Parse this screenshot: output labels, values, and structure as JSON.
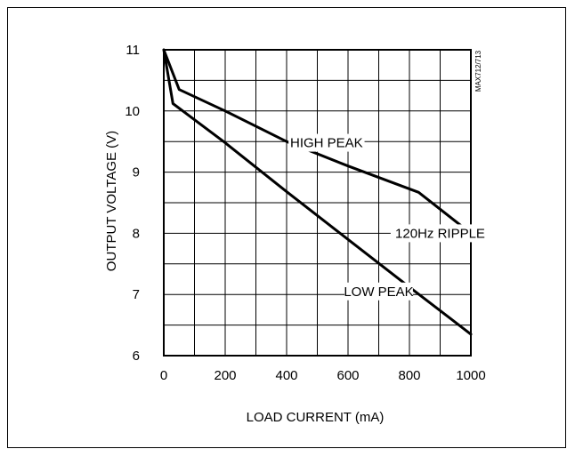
{
  "chart_data": {
    "type": "line",
    "title": "",
    "xlabel": "LOAD CURRENT (mA)",
    "ylabel": "OUTPUT VOLTAGE (V)",
    "xlim": [
      0,
      1000
    ],
    "ylim": [
      6,
      11
    ],
    "xticks": [
      0,
      200,
      400,
      600,
      800,
      1000
    ],
    "yticks": [
      6,
      7,
      8,
      9,
      10,
      11
    ],
    "grid": true,
    "side_label": "MAX712/713",
    "series": [
      {
        "name": "HIGH PEAK",
        "points": [
          [
            0,
            11.0
          ],
          [
            50,
            10.35
          ],
          [
            200,
            10.0
          ],
          [
            400,
            9.5
          ],
          [
            600,
            9.1
          ],
          [
            830,
            8.67
          ],
          [
            1000,
            8.0
          ]
        ]
      },
      {
        "name": "LOW PEAK",
        "points": [
          [
            0,
            11.0
          ],
          [
            30,
            10.12
          ],
          [
            200,
            9.48
          ],
          [
            400,
            8.68
          ],
          [
            600,
            7.9
          ],
          [
            800,
            7.12
          ],
          [
            1000,
            6.35
          ]
        ]
      }
    ],
    "annotations": [
      {
        "text": "HIGH PEAK",
        "x": 530,
        "y": 9.48
      },
      {
        "text": "120Hz RIPPLE",
        "x": 900,
        "y": 8.0
      },
      {
        "text": "LOW PEAK",
        "x": 700,
        "y": 7.05
      }
    ]
  }
}
